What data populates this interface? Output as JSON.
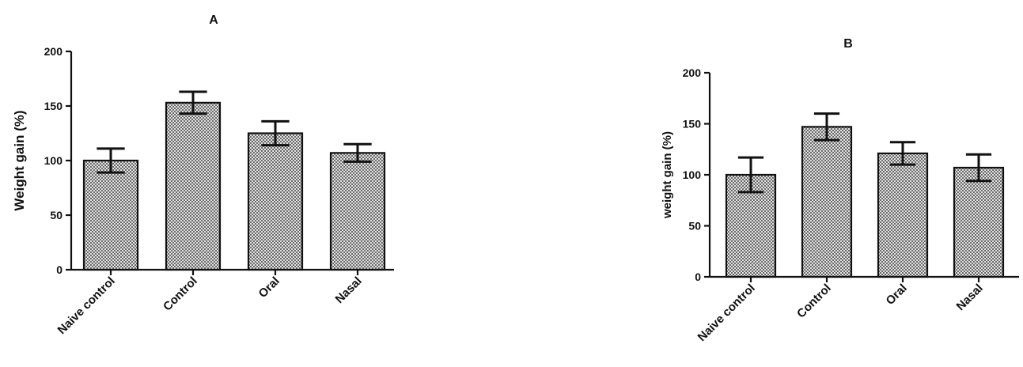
{
  "colors": {
    "ink": "#111111",
    "bar_fill_pattern": "checker-gray"
  },
  "chart_data": [
    {
      "type": "bar",
      "title": "A",
      "xlabel": "",
      "ylabel": "Weight gain (%)",
      "categories": [
        "Naive control",
        "Control",
        "Oral",
        "Nasal"
      ],
      "values": [
        100,
        153,
        125,
        107
      ],
      "error": [
        11,
        10,
        11,
        8
      ],
      "ylim": [
        0,
        200
      ],
      "yticks": [
        0,
        50,
        100,
        150,
        200
      ],
      "grid": false,
      "legend": "none"
    },
    {
      "type": "bar",
      "title": "B",
      "xlabel": "",
      "ylabel": "weight gain (%)",
      "categories": [
        "Naive control",
        "Control",
        "Oral",
        "Nasal"
      ],
      "values": [
        100,
        147,
        121,
        107
      ],
      "error": [
        17,
        13,
        11,
        13
      ],
      "ylim": [
        0,
        200
      ],
      "yticks": [
        0,
        50,
        100,
        150,
        200
      ],
      "grid": false,
      "legend": "none"
    }
  ]
}
